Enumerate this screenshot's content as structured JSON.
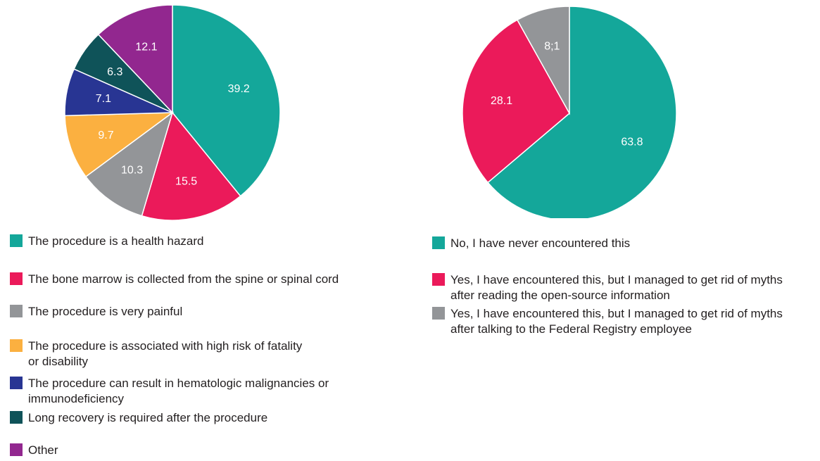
{
  "chart_data": [
    {
      "type": "pie",
      "slices": [
        {
          "label": "The procedure is a health hazard",
          "value": 39.2,
          "display": "39.2",
          "color": "#14a79a"
        },
        {
          "label": "The bone marrow is collected from the spine or spinal cord",
          "value": 15.5,
          "display": "15.5",
          "color": "#eb1a5a"
        },
        {
          "label": "The procedure is very painful",
          "value": 10.3,
          "display": "10.3",
          "color": "#939598"
        },
        {
          "label": "The procedure is associated with high risk of fatality\nor disability",
          "value": 9.7,
          "display": "9.7",
          "color": "#fbb040"
        },
        {
          "label": "The procedure can result in hematologic malignancies or\nimmunodeficiency",
          "value": 7.1,
          "display": "7.1",
          "color": "#283593"
        },
        {
          "label": "Long recovery is required after the procedure",
          "value": 6.3,
          "display": "6.3",
          "color": "#0f5359"
        },
        {
          "label": "Other",
          "value": 12.1,
          "display": "12.1",
          "color": "#92278f"
        }
      ],
      "legend_position": "bottom"
    },
    {
      "type": "pie",
      "slices": [
        {
          "label": "No, I have never encountered this",
          "value": 63.8,
          "display": "63.8",
          "color": "#14a79a"
        },
        {
          "label": "Yes, I have encountered this, but I managed to get rid of myths\nafter reading the open-source information",
          "value": 28.1,
          "display": "28.1",
          "color": "#eb1a5a"
        },
        {
          "label": "Yes, I have encountered this, but I managed to get rid of myths\nafter talking to the Federal Registry employee",
          "value": 8.1,
          "display": "8;1",
          "color": "#939598"
        }
      ],
      "legend_position": "bottom"
    }
  ]
}
